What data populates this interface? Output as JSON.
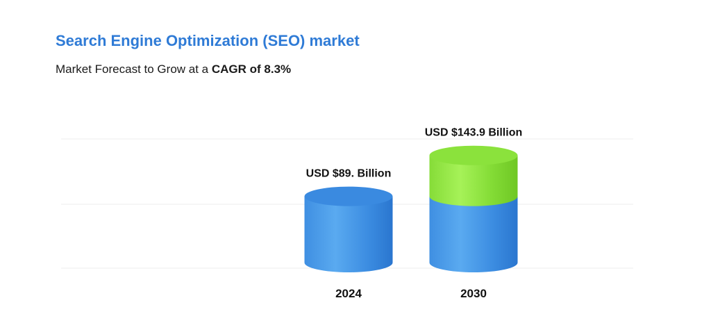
{
  "header": {
    "title": "Search Engine Optimization (SEO) market",
    "subtitle_prefix": "Market Forecast to Grow at a ",
    "subtitle_highlight": "CAGR of 8.3%"
  },
  "colors": {
    "title": "#2f7bd6",
    "base_segment": "#3d8fe3",
    "growth_segment": "#8ee23f",
    "gridline": "#ececec"
  },
  "chart_data": {
    "type": "bar",
    "style": "stacked-cylinder",
    "categories": [
      "2024",
      "2030"
    ],
    "series": [
      {
        "values": [
          89,
          89
        ]
      },
      {
        "values": [
          0,
          54.9
        ]
      }
    ],
    "totals": [
      89,
      143.9
    ],
    "data_labels": [
      "USD $89. Billion",
      "USD $143.9 Billion"
    ],
    "ylim": [
      0,
      160
    ],
    "grid": true
  }
}
